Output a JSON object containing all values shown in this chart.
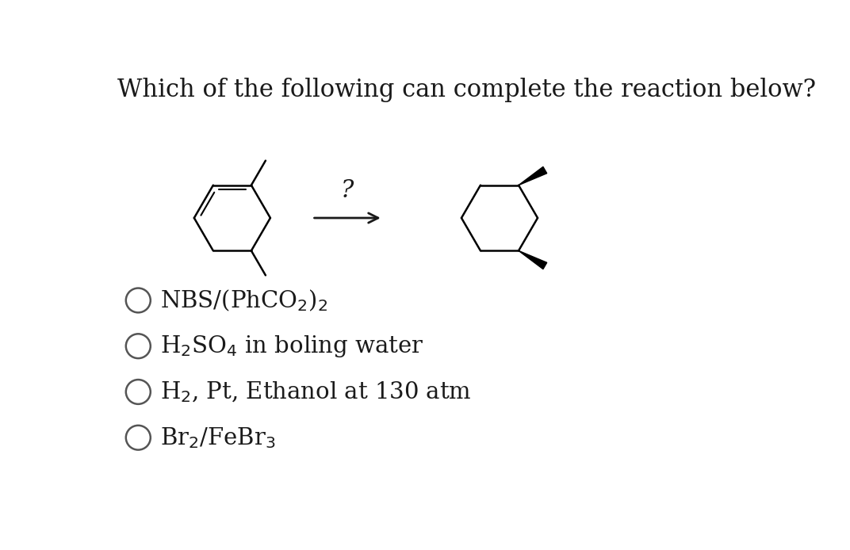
{
  "title": "Which of the following can complete the reaction below?",
  "title_fontsize": 22,
  "background_color": "#ffffff",
  "options": [
    "NBS/(PhCO$_2$)$_2$",
    "H$_2$SO$_4$ in boling water",
    "H$_2$, Pt, Ethanol at 130 atm",
    "Br$_2$/FeBr$_3$"
  ],
  "option_fontsize": 21,
  "text_color": "#1a1a1a",
  "arrow_color": "#1a1a1a",
  "mol_lw": 1.8,
  "inner_lw": 1.5
}
